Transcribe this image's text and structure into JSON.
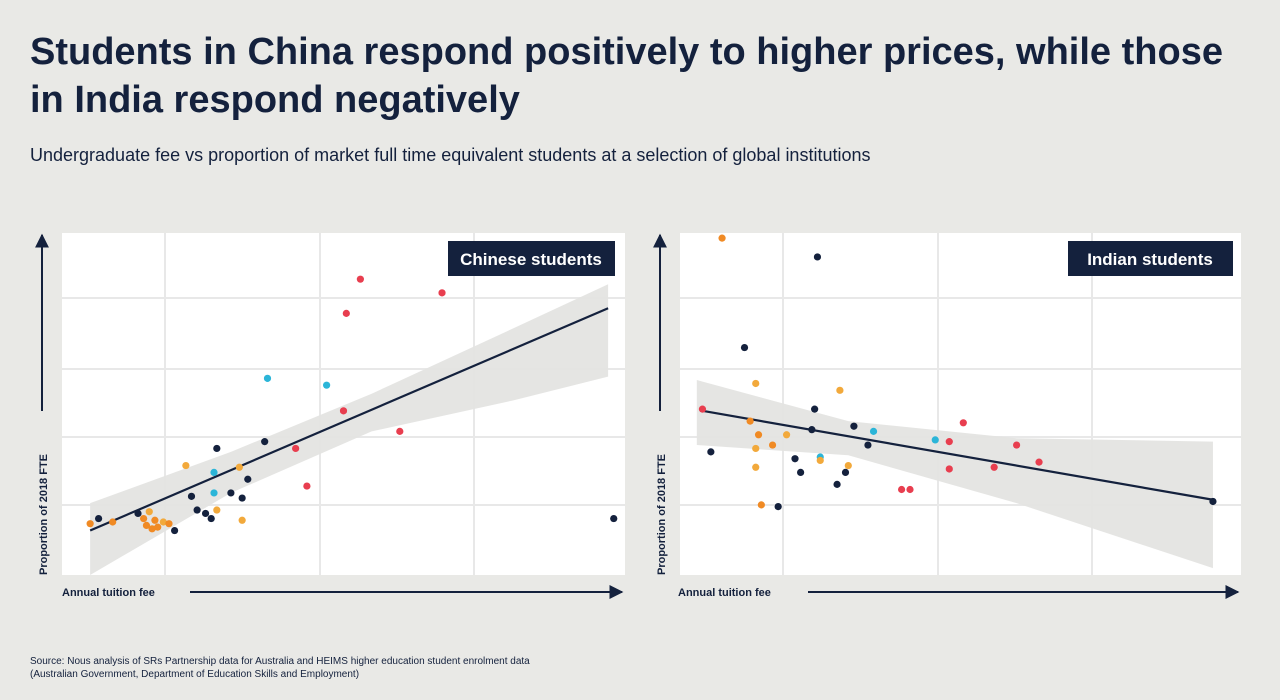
{
  "title": "Students in China respond positively to higher prices, while those in India respond negatively",
  "subtitle": "Undergraduate fee vs proportion of market full time equivalent students at a selection of global institutions",
  "source": {
    "line1": "Source: Nous analysis of SRs Partnership data for Australia and HEIMS higher education student enrolment data",
    "line2": "(Australian Government, Department of Education Skills and Employment)"
  },
  "colors": {
    "navy": "#14213d",
    "red": "#e83e4f",
    "orange": "#f08a24",
    "yellow": "#f2a93b",
    "cyan": "#2bb5d8",
    "band": "#e4e4e2",
    "panel": "#ffffff",
    "grid": "#e8e8e8"
  },
  "chart_data": [
    {
      "type": "scatter",
      "panel_label": "Chinese students",
      "xlabel": "Annual tuition fee",
      "ylabel": "Proportion of 2018 FTE",
      "xlim": [
        0,
        100
      ],
      "ylim": [
        0,
        100
      ],
      "grid": true,
      "legend": "top-right",
      "trend": {
        "x": [
          5,
          97
        ],
        "y": [
          13,
          78
        ]
      },
      "band": {
        "upper": [
          [
            5,
            21
          ],
          [
            30,
            36
          ],
          [
            55,
            53
          ],
          [
            80,
            72
          ],
          [
            97,
            85
          ]
        ],
        "lower": [
          [
            5,
            0
          ],
          [
            30,
            24
          ],
          [
            55,
            42
          ],
          [
            80,
            51
          ],
          [
            97,
            58
          ]
        ]
      },
      "points": [
        {
          "x": 5,
          "y": 15,
          "c": "orange"
        },
        {
          "x": 6.5,
          "y": 16.5,
          "c": "navy"
        },
        {
          "x": 9,
          "y": 15.5,
          "c": "orange"
        },
        {
          "x": 13.5,
          "y": 18,
          "c": "navy"
        },
        {
          "x": 14.5,
          "y": 16.5,
          "c": "orange"
        },
        {
          "x": 15.5,
          "y": 18.5,
          "c": "yellow"
        },
        {
          "x": 15,
          "y": 14.5,
          "c": "orange"
        },
        {
          "x": 16,
          "y": 13.5,
          "c": "orange"
        },
        {
          "x": 17,
          "y": 14,
          "c": "orange"
        },
        {
          "x": 18,
          "y": 15.5,
          "c": "yellow"
        },
        {
          "x": 16.5,
          "y": 16,
          "c": "orange"
        },
        {
          "x": 19,
          "y": 15,
          "c": "orange"
        },
        {
          "x": 20,
          "y": 13,
          "c": "navy"
        },
        {
          "x": 22,
          "y": 32,
          "c": "yellow"
        },
        {
          "x": 23,
          "y": 23,
          "c": "navy"
        },
        {
          "x": 24,
          "y": 19,
          "c": "navy"
        },
        {
          "x": 25.5,
          "y": 18,
          "c": "navy"
        },
        {
          "x": 26.5,
          "y": 16.5,
          "c": "navy"
        },
        {
          "x": 27,
          "y": 24,
          "c": "cyan"
        },
        {
          "x": 27,
          "y": 30,
          "c": "cyan"
        },
        {
          "x": 27.5,
          "y": 37,
          "c": "navy"
        },
        {
          "x": 27.5,
          "y": 19,
          "c": "yellow"
        },
        {
          "x": 30,
          "y": 24,
          "c": "navy"
        },
        {
          "x": 31.5,
          "y": 31.5,
          "c": "yellow"
        },
        {
          "x": 32,
          "y": 22.5,
          "c": "navy"
        },
        {
          "x": 32,
          "y": 16,
          "c": "yellow"
        },
        {
          "x": 33,
          "y": 28,
          "c": "navy"
        },
        {
          "x": 36,
          "y": 39,
          "c": "navy"
        },
        {
          "x": 36.5,
          "y": 57.5,
          "c": "cyan"
        },
        {
          "x": 41.5,
          "y": 37,
          "c": "red"
        },
        {
          "x": 43.5,
          "y": 26,
          "c": "red"
        },
        {
          "x": 47,
          "y": 55.5,
          "c": "cyan"
        },
        {
          "x": 50,
          "y": 48,
          "c": "red"
        },
        {
          "x": 50.5,
          "y": 76.5,
          "c": "red"
        },
        {
          "x": 53,
          "y": 86.5,
          "c": "red"
        },
        {
          "x": 60,
          "y": 42,
          "c": "red"
        },
        {
          "x": 67.5,
          "y": 82.5,
          "c": "red"
        },
        {
          "x": 71.5,
          "y": 95.5,
          "c": "red"
        },
        {
          "x": 98,
          "y": 16.5,
          "c": "navy"
        }
      ]
    },
    {
      "type": "scatter",
      "panel_label": "Indian students",
      "xlabel": "Annual tuition fee",
      "ylabel": "Proportion of 2018 FTE",
      "xlim": [
        0,
        100
      ],
      "ylim": [
        0,
        100
      ],
      "grid": true,
      "legend": "top-right",
      "trend": {
        "x": [
          4,
          95
        ],
        "y": [
          48,
          22
        ]
      },
      "band": {
        "upper": [
          [
            3,
            57
          ],
          [
            30,
            45
          ],
          [
            60,
            40
          ],
          [
            95,
            39
          ]
        ],
        "lower": [
          [
            3,
            38
          ],
          [
            30,
            35
          ],
          [
            60,
            21
          ],
          [
            95,
            2
          ]
        ]
      },
      "points": [
        {
          "x": 4,
          "y": 48.5,
          "c": "red"
        },
        {
          "x": 5.5,
          "y": 36,
          "c": "navy"
        },
        {
          "x": 7.5,
          "y": 98.5,
          "c": "orange"
        },
        {
          "x": 11.5,
          "y": 66.5,
          "c": "navy"
        },
        {
          "x": 12.5,
          "y": 45,
          "c": "orange"
        },
        {
          "x": 13.5,
          "y": 56,
          "c": "yellow"
        },
        {
          "x": 13.5,
          "y": 37,
          "c": "yellow"
        },
        {
          "x": 13.5,
          "y": 31.5,
          "c": "yellow"
        },
        {
          "x": 14,
          "y": 41,
          "c": "orange"
        },
        {
          "x": 14.5,
          "y": 20.5,
          "c": "orange"
        },
        {
          "x": 16.5,
          "y": 38,
          "c": "orange"
        },
        {
          "x": 17.5,
          "y": 20,
          "c": "navy"
        },
        {
          "x": 19,
          "y": 41,
          "c": "yellow"
        },
        {
          "x": 20.5,
          "y": 34,
          "c": "navy"
        },
        {
          "x": 21.5,
          "y": 30,
          "c": "navy"
        },
        {
          "x": 23.5,
          "y": 42.5,
          "c": "navy"
        },
        {
          "x": 24,
          "y": 48.5,
          "c": "navy"
        },
        {
          "x": 24.5,
          "y": 93,
          "c": "navy"
        },
        {
          "x": 25,
          "y": 34.5,
          "c": "cyan"
        },
        {
          "x": 25,
          "y": 33.5,
          "c": "yellow"
        },
        {
          "x": 28,
          "y": 26.5,
          "c": "navy"
        },
        {
          "x": 28.5,
          "y": 54,
          "c": "yellow"
        },
        {
          "x": 29.5,
          "y": 30,
          "c": "navy"
        },
        {
          "x": 30,
          "y": 32,
          "c": "yellow"
        },
        {
          "x": 31,
          "y": 43.5,
          "c": "navy"
        },
        {
          "x": 33.5,
          "y": 38,
          "c": "navy"
        },
        {
          "x": 34.5,
          "y": 42,
          "c": "cyan"
        },
        {
          "x": 39.5,
          "y": 25,
          "c": "red"
        },
        {
          "x": 41,
          "y": 25,
          "c": "red"
        },
        {
          "x": 45.5,
          "y": 39.5,
          "c": "cyan"
        },
        {
          "x": 48,
          "y": 39,
          "c": "red"
        },
        {
          "x": 48,
          "y": 31,
          "c": "red"
        },
        {
          "x": 50.5,
          "y": 44.5,
          "c": "red"
        },
        {
          "x": 56,
          "y": 31.5,
          "c": "red"
        },
        {
          "x": 60,
          "y": 38,
          "c": "red"
        },
        {
          "x": 64,
          "y": 33,
          "c": "red"
        },
        {
          "x": 95,
          "y": 21.5,
          "c": "navy"
        }
      ]
    }
  ]
}
